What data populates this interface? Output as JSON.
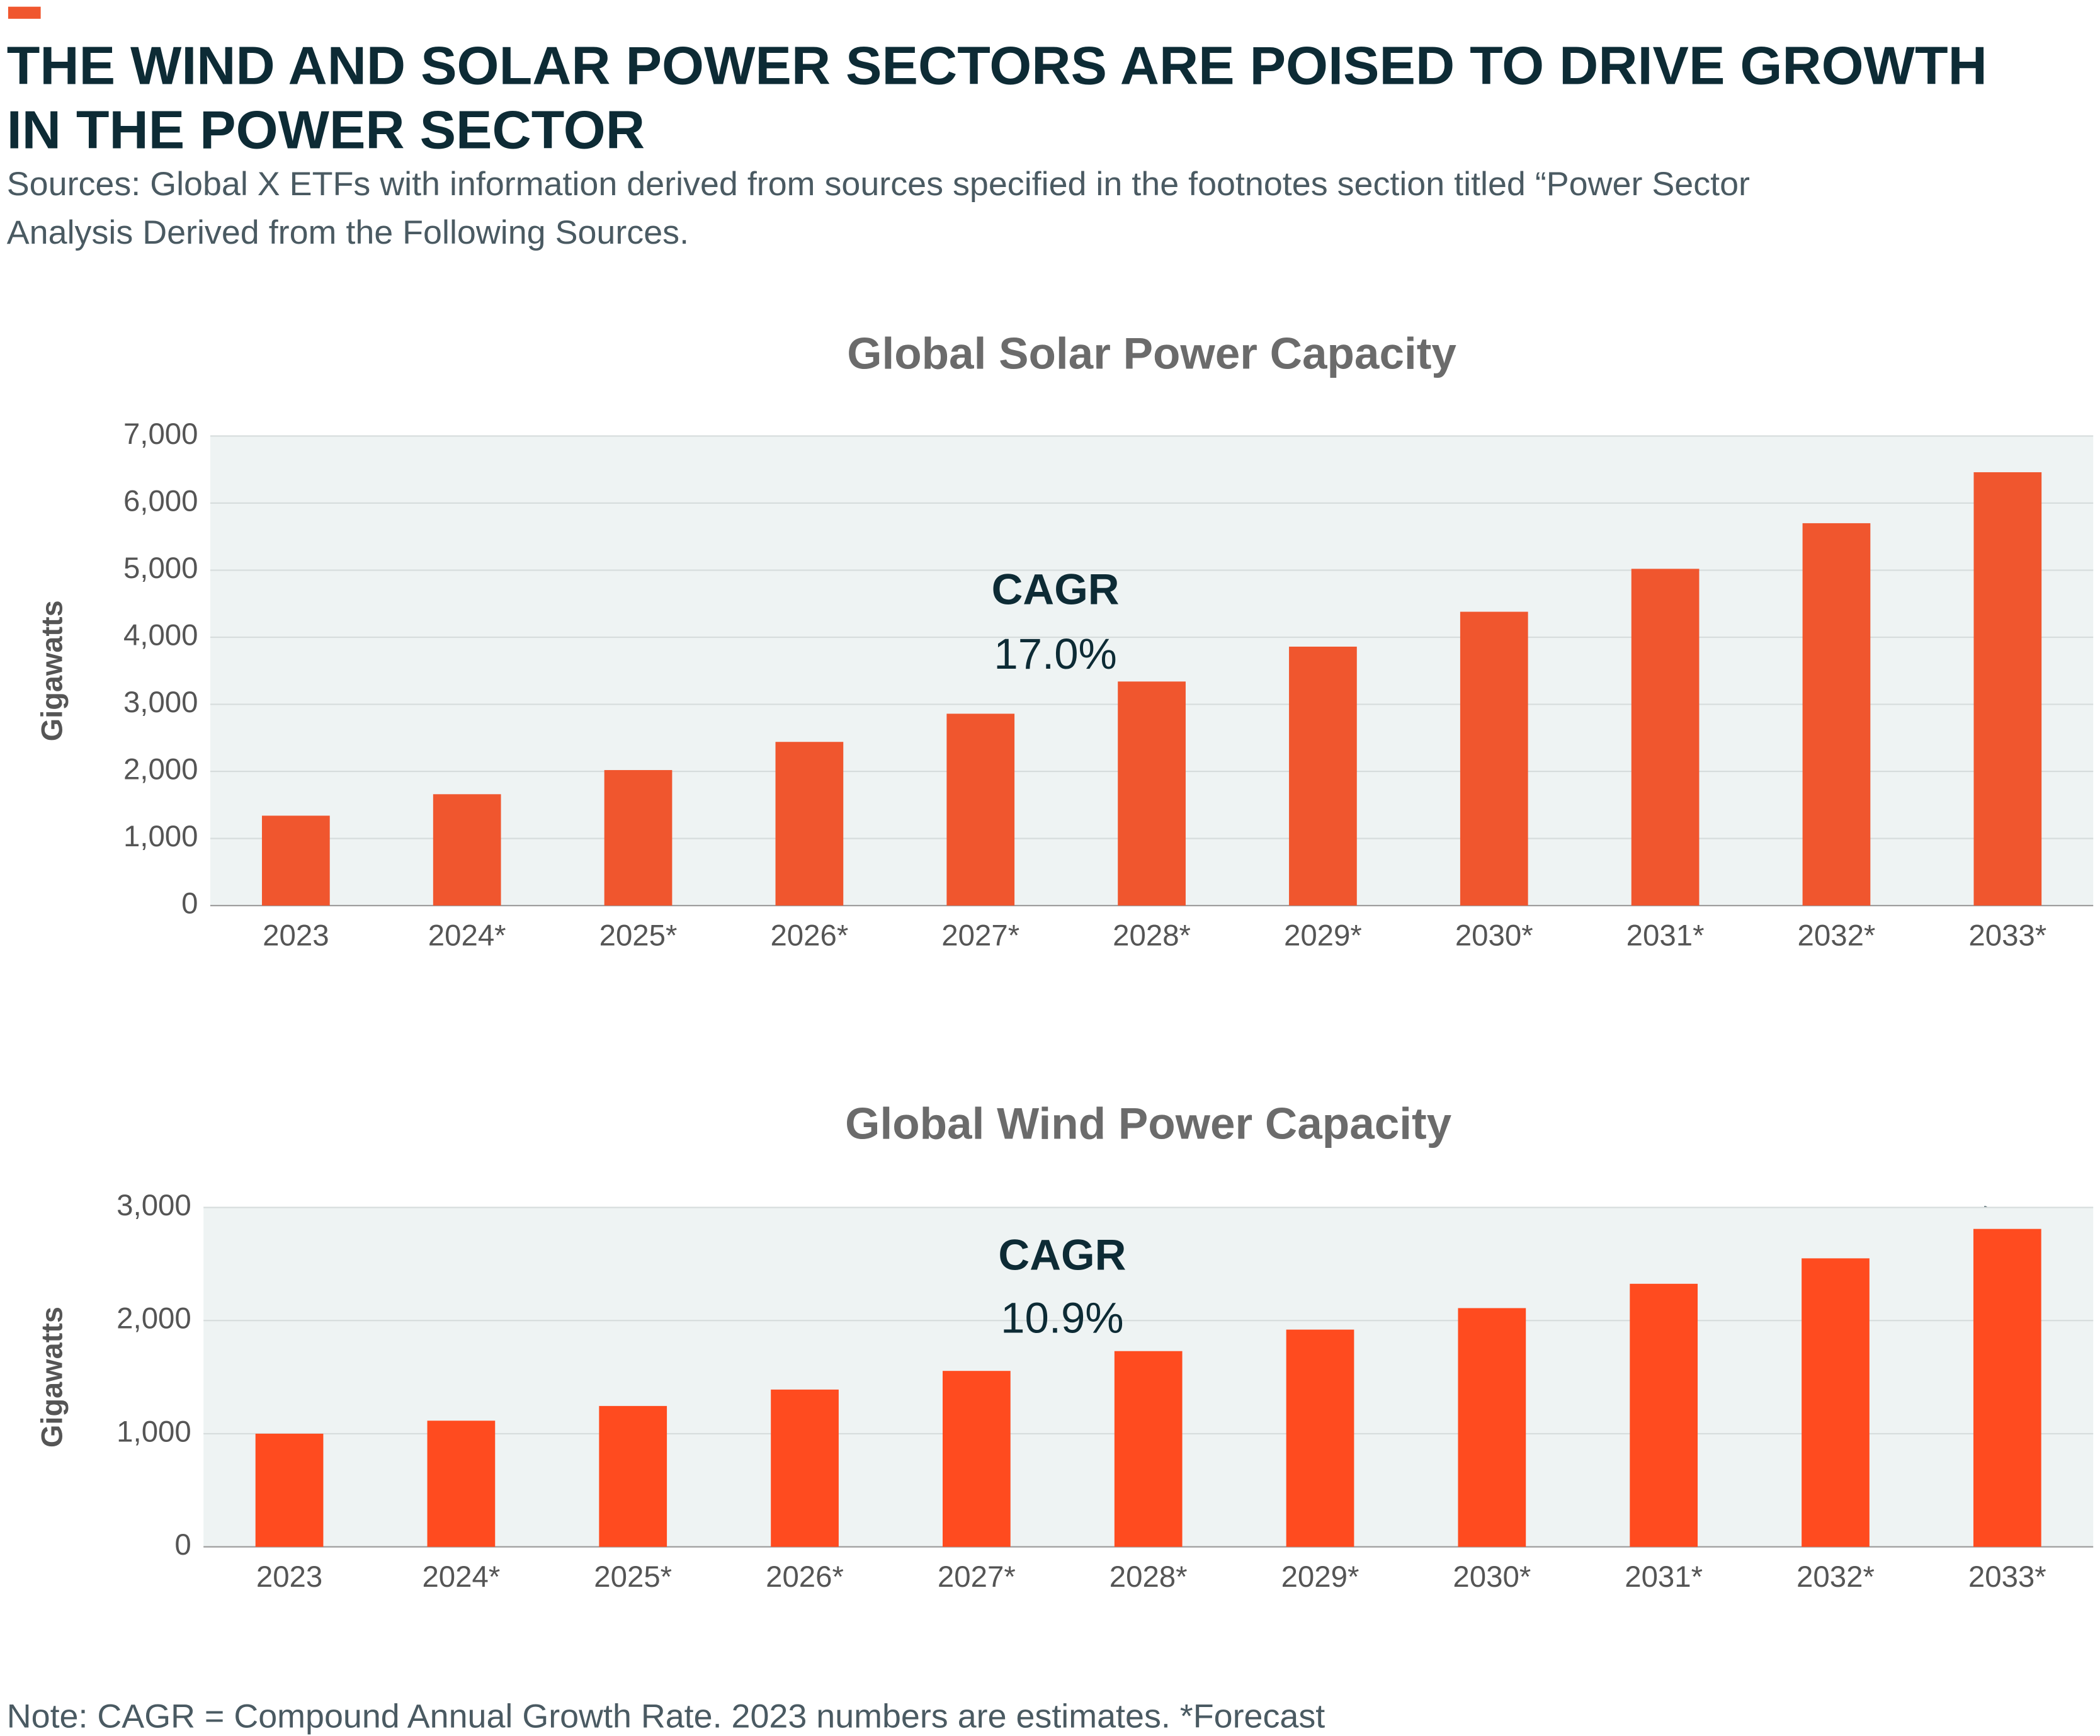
{
  "title_lines": [
    "THE WIND AND SOLAR POWER SECTORS ARE POISED TO DRIVE GROWTH",
    "IN THE POWER SECTOR"
  ],
  "subtitle_lines": [
    "Sources: Global X ETFs with information derived from sources specified in the footnotes section titled “Power Sector",
    "Analysis Derived from the Following Sources."
  ],
  "note": "Note: CAGR = Compound Annual Growth Rate. 2023 numbers are estimates. *Forecast",
  "chart_data": [
    {
      "type": "bar",
      "title": "Global Solar Power Capacity",
      "y_label": "Gigawatts",
      "categories": [
        "2023",
        "2024*",
        "2025*",
        "2026*",
        "2027*",
        "2028*",
        "2029*",
        "2030*",
        "2031*",
        "2032*",
        "2033*"
      ],
      "values": [
        1340,
        1660,
        2020,
        2440,
        2860,
        3340,
        3860,
        4380,
        5020,
        5700,
        6460
      ],
      "color": "#f0562e",
      "ylim": [
        0,
        7000
      ],
      "yticks": [
        0,
        {
          "value": 1000,
          "label": "1,000"
        },
        {
          "value": 2000,
          "label": "2,000"
        },
        {
          "value": 3000,
          "label": "3,000"
        },
        {
          "value": 4000,
          "label": "4,000"
        },
        {
          "value": 5000,
          "label": "5,000"
        },
        {
          "value": 6000,
          "label": "6,000"
        },
        {
          "value": 7000,
          "label": "7,000"
        }
      ],
      "grid": true,
      "annotations": [
        "CAGR",
        "17.0%"
      ]
    },
    {
      "type": "bar",
      "title": "Global Wind Power Capacity",
      "y_label": "Gigawatts",
      "categories": [
        "2023",
        "2024*",
        "2025*",
        "2026*",
        "2027*",
        "2028*",
        "2029*",
        "2030*",
        "2031*",
        "2032*",
        "2033*"
      ],
      "values": [
        1000,
        1115,
        1245,
        1390,
        1555,
        1730,
        1920,
        2110,
        2325,
        2550,
        2810
      ],
      "color": "#ff4b1f",
      "ylim": [
        0,
        3000
      ],
      "yticks": [
        0,
        {
          "value": 1000,
          "label": "1,000"
        },
        {
          "value": 2000,
          "label": "2,000"
        },
        {
          "value": 3000,
          "label": "3,000"
        }
      ],
      "grid": true,
      "annotations": [
        "CAGR",
        "10.9%"
      ]
    }
  ]
}
